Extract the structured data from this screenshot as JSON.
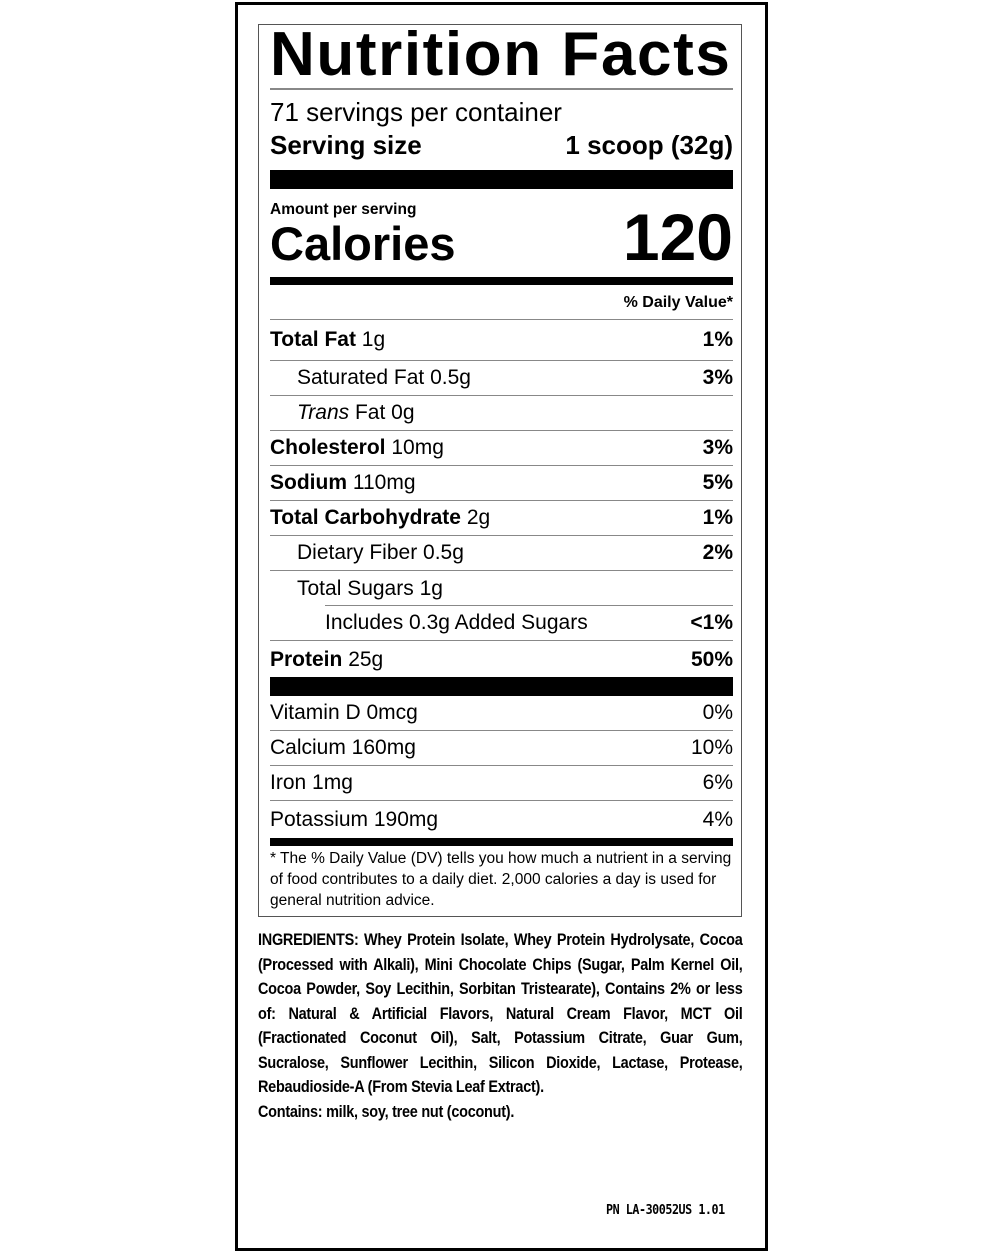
{
  "label": {
    "title": "Nutrition Facts",
    "servings_per_container": "71 servings per container",
    "serving_size_label": "Serving size",
    "serving_size_value": "1 scoop (32g)",
    "amount_per_serving": "Amount per serving",
    "calories_label": "Calories",
    "calories_value": "120",
    "daily_value_header": "% Daily Value*",
    "nutrients": [
      {
        "name": "Total Fat",
        "amount": "1g",
        "dv": "1%"
      },
      {
        "name": "Saturated Fat",
        "amount": "0.5g",
        "dv": "3%"
      },
      {
        "name": "Trans",
        "name_suffix": "Fat",
        "amount": "0g",
        "dv": ""
      },
      {
        "name": "Cholesterol",
        "amount": "10mg",
        "dv": "3%"
      },
      {
        "name": "Sodium",
        "amount": "110mg",
        "dv": "5%"
      },
      {
        "name": "Total Carbohydrate",
        "amount": "2g",
        "dv": "1%"
      },
      {
        "name": "Dietary Fiber",
        "amount": "0.5g",
        "dv": "2%"
      },
      {
        "name": "Total Sugars",
        "amount": "1g",
        "dv": ""
      },
      {
        "name": "Includes 0.3g Added Sugars",
        "amount": "",
        "dv": "<1%"
      },
      {
        "name": "Protein",
        "amount": "25g",
        "dv": "50%"
      }
    ],
    "vitamins": [
      {
        "text": "Vitamin D 0mcg",
        "dv": "0%"
      },
      {
        "text": "Calcium 160mg",
        "dv": "10%"
      },
      {
        "text": "Iron 1mg",
        "dv": "6%"
      },
      {
        "text": "Potassium 190mg",
        "dv": "4%"
      }
    ],
    "footnote": "* The % Daily Value (DV) tells you how much a nutrient in a serving of food contributes to a daily diet. 2,000 calories a day is used for general nutrition advice."
  },
  "ingredients": {
    "text": "INGREDIENTS: Whey Protein Isolate, Whey Protein Hydrolysate, Cocoa (Processed with Alkali), Mini Chocolate Chips (Sugar, Palm Kernel Oil, Cocoa Powder, Soy Lecithin, Sorbitan Tristearate), Contains 2% or less of: Natural & Artificial Flavors, Natural Cream Flavor, MCT Oil (Fractionated Coconut Oil), Salt, Potassium Citrate, Guar Gum, Sucralose, Sunflower Lecithin, Silicon Dioxide, Lactase, Protease, Rebaudioside-A (From Stevia Leaf Extract).",
    "contains": "Contains: milk, soy, tree nut (coconut)."
  },
  "part_number": "PN LA-30052US 1.01"
}
